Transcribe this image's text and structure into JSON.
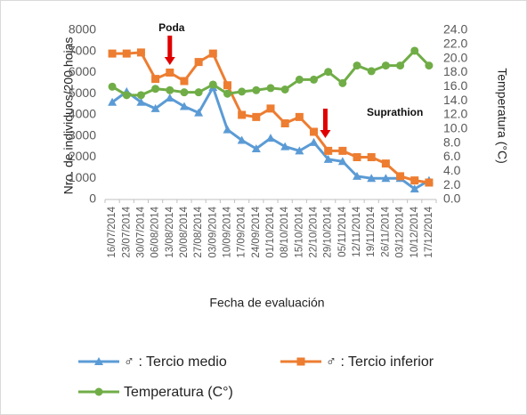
{
  "chart_data": {
    "type": "line",
    "categories": [
      "16/07/2014",
      "23/07/2014",
      "30/07/2014",
      "06/08/2014",
      "13/08/2014",
      "20/08/2014",
      "27/08/2014",
      "03/09/2014",
      "10/09/2014",
      "17/09/2014",
      "24/09/2014",
      "01/10/2014",
      "08/10/2014",
      "15/10/2014",
      "22/10/2014",
      "29/10/2014",
      "05/11/2014",
      "12/11/2014",
      "19/11/2014",
      "26/11/2014",
      "03/12/2014",
      "10/12/2014",
      "17/12/2014"
    ],
    "series": [
      {
        "name": "♂ : Tercio medio",
        "color": "#5b9bd5",
        "marker": "triangle",
        "values": [
          4600,
          5100,
          4600,
          4300,
          4800,
          4400,
          4100,
          5300,
          3300,
          2800,
          2400,
          2900,
          2500,
          2300,
          2700,
          1900,
          1800,
          1100,
          1000,
          1000,
          1000,
          500,
          900
        ]
      },
      {
        "name": "♂ : Tercio inferior",
        "color": "#ed7d31",
        "marker": "square",
        "values": [
          6900,
          6900,
          6950,
          5700,
          6000,
          5600,
          6500,
          6900,
          5400,
          4000,
          3900,
          4300,
          3600,
          3900,
          3200,
          2300,
          2300,
          2000,
          2000,
          1700,
          1100,
          900,
          800
        ]
      },
      {
        "name": "Temperatura (C°)",
        "color": "#70ad47",
        "marker": "circle",
        "axis": "y2",
        "values": [
          16.0,
          14.8,
          14.8,
          15.7,
          15.5,
          15.2,
          15.2,
          16.3,
          15.0,
          15.3,
          15.5,
          15.8,
          15.6,
          17.0,
          17.0,
          18.1,
          16.5,
          19.0,
          18.2,
          19.0,
          19.0,
          21.1,
          19.0
        ]
      }
    ],
    "ylim": [
      0,
      8000
    ],
    "yticks": [
      0,
      1000,
      2000,
      3000,
      4000,
      5000,
      6000,
      7000,
      8000
    ],
    "y2lim": [
      0,
      24
    ],
    "y2ticks": [
      {
        "value": 0,
        "label": "0.0"
      },
      {
        "value": 2,
        "label": "2.0"
      },
      {
        "value": 4,
        "label": "4.0"
      },
      {
        "value": 6,
        "label": "6.0"
      },
      {
        "value": 8,
        "label": "8.0"
      },
      {
        "value": 10,
        "label": "10.0"
      },
      {
        "value": 12,
        "label": "12.0"
      },
      {
        "value": 14,
        "label": "14.0"
      },
      {
        "value": 16,
        "label": "16.0"
      },
      {
        "value": 18,
        "label": "18.0"
      },
      {
        "value": 20,
        "label": "20.0"
      },
      {
        "value": 22,
        "label": "22.0"
      },
      {
        "value": 24,
        "label": "24.0"
      }
    ],
    "ylabel": "Nro. de individuos/200 hojas",
    "y2label": "Temperatura (°C)",
    "xlabel": "Fecha de evaluación",
    "annotations": [
      {
        "text": "Poda"
      },
      {
        "text": "Suprathion"
      }
    ],
    "grid": false
  }
}
